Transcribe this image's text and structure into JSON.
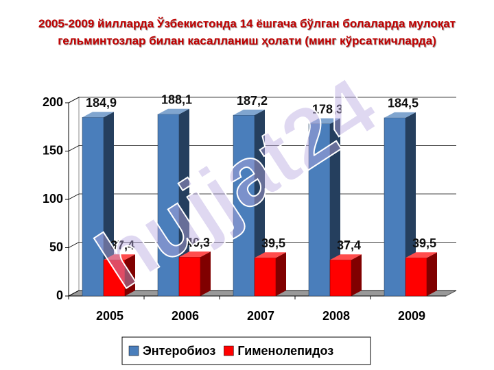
{
  "chart_data": {
    "type": "bar3d",
    "title": "2005-2009 йилларда Ўзбекистонда 14 ёшгача бўлган болаларда мулоқат гельминтозлар билан касалланиш ҳолати (минг кўрсаткичларда)",
    "categories": [
      "2005",
      "2006",
      "2007",
      "2008",
      "2009"
    ],
    "series": [
      {
        "name": "Энтеробиоз",
        "color": "#4a7ebb",
        "values": [
          184.9,
          188.1,
          187.2,
          178.3,
          184.5
        ],
        "value_labels": [
          "184,9",
          "188,1",
          "187,2",
          "178,3",
          "184,5"
        ]
      },
      {
        "name": "Гименолепидоз",
        "color": "#ff0000",
        "values": [
          37.4,
          40.3,
          39.5,
          37.4,
          39.5
        ],
        "value_labels": [
          "37,4",
          "40,3",
          "39,5",
          "37,4",
          "39,5"
        ]
      }
    ],
    "ylim": [
      0,
      200
    ],
    "yticks": [
      0,
      50,
      100,
      150,
      200
    ],
    "grid": true,
    "legend": "bottom",
    "watermark": "hujjat24"
  }
}
